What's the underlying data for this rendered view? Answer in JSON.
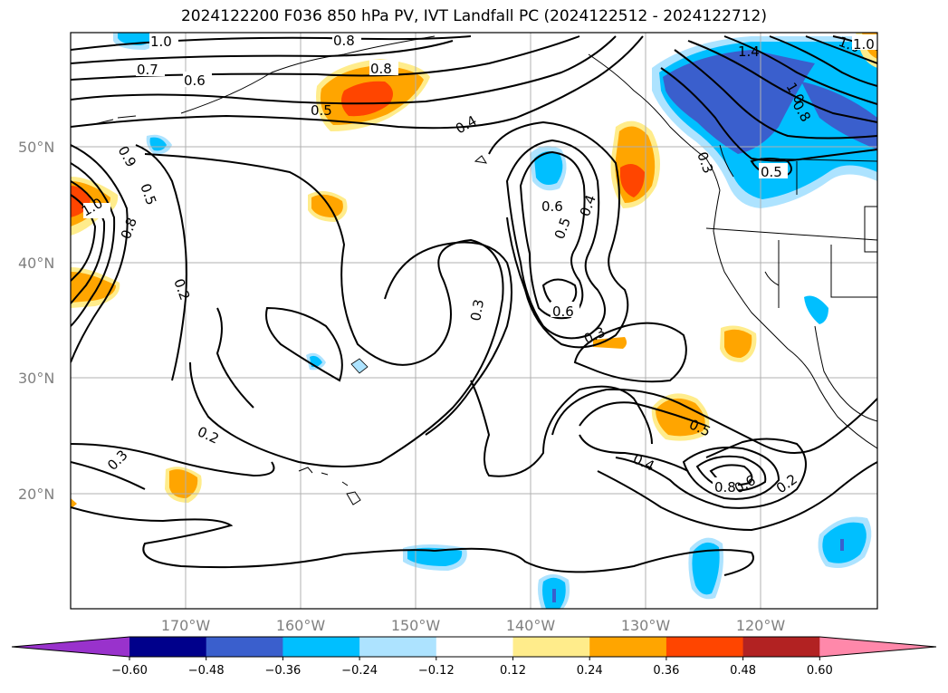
{
  "title": "2024122200 F036 850 hPa PV, IVT Landfall PC (2024122512 - 2024122712)",
  "lat_ticks": [
    "50°N",
    "40°N",
    "30°N",
    "20°N"
  ],
  "lon_ticks": [
    "170°W",
    "160°W",
    "150°W",
    "140°W",
    "130°W",
    "120°W"
  ],
  "colorbar": {
    "colors": [
      "#9932CC",
      "#00008B",
      "#3A5FCD",
      "#00BFFF",
      "#ADE3FF",
      "#FFFFFF",
      "#FFEC8B",
      "#FFA500",
      "#FF4500",
      "#B22222",
      "#FF88AA"
    ],
    "tick_labels": [
      "−0.60",
      "−0.48",
      "−0.36",
      "−0.24",
      "−0.12",
      "0.12",
      "0.24",
      "0.36",
      "0.48",
      "0.60"
    ]
  },
  "contour_labels": [
    "1.0",
    "0.8",
    "0.8",
    "0.7",
    "0.6",
    "0.5",
    "0.4",
    "1.4",
    "1.0",
    "1.0",
    "0.8",
    "0.5",
    "0.3",
    "0.9",
    "0.5",
    "1.0",
    "0.8",
    "0.2",
    "0.6",
    "0.5",
    "0.4",
    "0.6",
    "0.3",
    "0.3",
    "0.2",
    "0.3",
    "0.5",
    "0.4",
    "0.8",
    "0.6",
    "0.2",
    "1.0"
  ],
  "chart_data": {
    "type": "contour map",
    "variable": "850 hPa PV, IVT Landfall PC",
    "init": "2024122200",
    "forecast_hour": "F036",
    "period": "2024122512 - 2024122712",
    "lat_range": [
      10,
      60
    ],
    "lon_range": [
      -180,
      -110
    ],
    "contour_levels": [
      0.2,
      0.3,
      0.4,
      0.5,
      0.6,
      0.7,
      0.8,
      0.9,
      1.0,
      1.4
    ],
    "fill_levels": [
      -0.6,
      -0.48,
      -0.36,
      -0.24,
      -0.12,
      0.12,
      0.24,
      0.36,
      0.48,
      0.6
    ]
  }
}
